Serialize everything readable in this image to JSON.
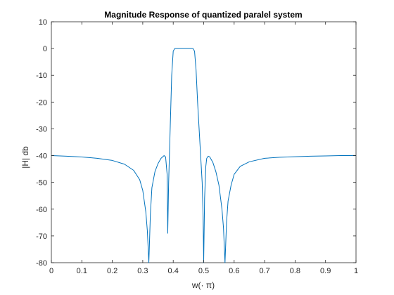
{
  "chart_data": {
    "type": "line",
    "title": "Magnitude Response of quantized paralel system",
    "xlabel": "w(· π)",
    "ylabel": "|H| db",
    "xlim": [
      0,
      1
    ],
    "ylim": [
      -80,
      10
    ],
    "xticks": [
      0,
      0.1,
      0.2,
      0.3,
      0.4,
      0.5,
      0.6,
      0.7,
      0.8,
      0.9,
      1
    ],
    "xtick_labels": [
      "0",
      "0.1",
      "0.2",
      "0.3",
      "0.4",
      "0.5",
      "0.6",
      "0.7",
      "0.8",
      "0.9",
      "1"
    ],
    "yticks": [
      10,
      0,
      -10,
      -20,
      -30,
      -40,
      -50,
      -60,
      -70,
      -80
    ],
    "ytick_labels": [
      "10",
      "0",
      "-10",
      "-20",
      "-30",
      "-40",
      "-50",
      "-60",
      "-70",
      "-80"
    ],
    "grid": false,
    "series": [
      {
        "color": "#0072BD",
        "x": [
          0,
          0.05,
          0.1,
          0.15,
          0.2,
          0.24,
          0.27,
          0.29,
          0.3,
          0.31,
          0.315,
          0.32,
          0.325,
          0.33,
          0.34,
          0.35,
          0.36,
          0.37,
          0.375,
          0.38,
          0.382,
          0.385,
          0.39,
          0.395,
          0.4,
          0.405,
          0.41,
          0.43,
          0.45,
          0.465,
          0.47,
          0.475,
          0.48,
          0.485,
          0.49,
          0.495,
          0.498,
          0.5,
          0.503,
          0.507,
          0.51,
          0.515,
          0.52,
          0.53,
          0.54,
          0.55,
          0.56,
          0.565,
          0.57,
          0.575,
          0.58,
          0.59,
          0.6,
          0.62,
          0.65,
          0.7,
          0.75,
          0.8,
          0.85,
          0.9,
          0.95,
          1
        ],
        "y": [
          -40,
          -40.2,
          -40.5,
          -41,
          -41.8,
          -43.2,
          -45.5,
          -49,
          -53,
          -61,
          -68,
          -80,
          -62,
          -52,
          -46,
          -43,
          -41,
          -40,
          -40.5,
          -47,
          -69,
          -50,
          -30,
          -10,
          -1,
          0,
          0,
          0,
          0,
          0,
          -1,
          -8,
          -20,
          -30,
          -40,
          -50,
          -62,
          -80,
          -56,
          -44,
          -41,
          -40.2,
          -40.5,
          -42.5,
          -46,
          -51,
          -60,
          -67,
          -80,
          -65,
          -57,
          -51,
          -47,
          -44,
          -42.3,
          -41,
          -40.6,
          -40.4,
          -40.2,
          -40.1,
          -40,
          -40
        ]
      }
    ]
  }
}
